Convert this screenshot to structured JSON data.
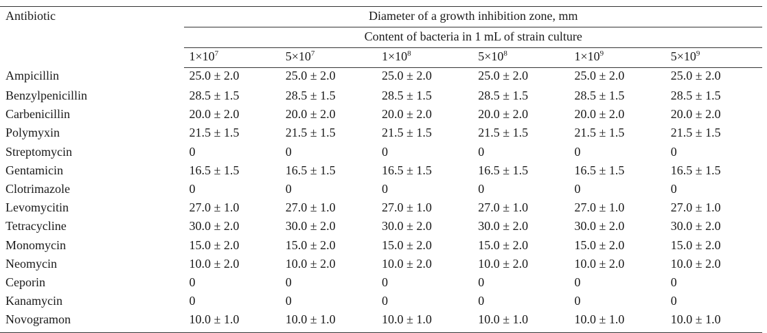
{
  "table": {
    "corner_header": "Antibiotic",
    "group_header": "Diameter of a growth inhibition zone, mm",
    "subgroup_header": "Content of bacteria in 1 mL of strain culture",
    "concentrations": [
      {
        "base": "1×10",
        "exp": "7"
      },
      {
        "base": "5×10",
        "exp": "7"
      },
      {
        "base": "1×10",
        "exp": "8"
      },
      {
        "base": "5×10",
        "exp": "8"
      },
      {
        "base": "1×10",
        "exp": "9"
      },
      {
        "base": "5×10",
        "exp": "9"
      }
    ],
    "rows": [
      {
        "name": "Ampicillin",
        "values": [
          "25.0 ± 2.0",
          "25.0 ± 2.0",
          "25.0 ± 2.0",
          "25.0 ± 2.0",
          "25.0 ± 2.0",
          "25.0 ± 2.0"
        ]
      },
      {
        "name": "Benzylpenicillin",
        "values": [
          "28.5 ± 1.5",
          "28.5 ± 1.5",
          "28.5 ± 1.5",
          "28.5 ± 1.5",
          "28.5 ± 1.5",
          "28.5 ± 1.5"
        ]
      },
      {
        "name": "Carbenicillin",
        "values": [
          "20.0 ± 2.0",
          "20.0 ± 2.0",
          "20.0 ± 2.0",
          "20.0 ± 2.0",
          "20.0 ± 2.0",
          "20.0 ± 2.0"
        ]
      },
      {
        "name": "Polymyxin",
        "values": [
          "21.5 ± 1.5",
          "21.5 ± 1.5",
          "21.5 ± 1.5",
          "21.5 ± 1.5",
          "21.5 ± 1.5",
          "21.5 ± 1.5"
        ]
      },
      {
        "name": "Streptomycin",
        "values": [
          "0",
          "0",
          "0",
          "0",
          "0",
          "0"
        ]
      },
      {
        "name": "Gentamicin",
        "values": [
          "16.5 ± 1.5",
          "16.5 ± 1.5",
          "16.5 ± 1.5",
          "16.5 ± 1.5",
          "16.5 ± 1.5",
          "16.5 ± 1.5"
        ]
      },
      {
        "name": "Clotrimazole",
        "values": [
          "0",
          "0",
          "0",
          "0",
          "0",
          "0"
        ]
      },
      {
        "name": "Levomycitin",
        "values": [
          "27.0 ± 1.0",
          "27.0 ± 1.0",
          "27.0 ± 1.0",
          "27.0 ± 1.0",
          "27.0 ± 1.0",
          "27.0 ± 1.0"
        ]
      },
      {
        "name": "Tetracycline",
        "values": [
          "30.0 ± 2.0",
          "30.0 ± 2.0",
          "30.0 ± 2.0",
          "30.0 ± 2.0",
          "30.0 ± 2.0",
          "30.0 ± 2.0"
        ]
      },
      {
        "name": "Monomycin",
        "values": [
          "15.0 ± 2.0",
          "15.0 ± 2.0",
          "15.0 ± 2.0",
          "15.0 ± 2.0",
          "15.0 ± 2.0",
          "15.0 ± 2.0"
        ]
      },
      {
        "name": "Neomycin",
        "values": [
          "10.0 ± 2.0",
          "10.0 ± 2.0",
          "10.0 ± 2.0",
          "10.0 ± 2.0",
          "10.0 ± 2.0",
          "10.0 ± 2.0"
        ]
      },
      {
        "name": "Ceporin",
        "values": [
          "0",
          "0",
          "0",
          "0",
          "0",
          "0"
        ]
      },
      {
        "name": "Kanamycin",
        "values": [
          "0",
          "0",
          "0",
          "0",
          "0",
          "0"
        ]
      },
      {
        "name": "Novogramon",
        "values": [
          "10.0 ± 1.0",
          "10.0 ± 1.0",
          "10.0 ± 1.0",
          "10.0 ± 1.0",
          "10.0 ± 1.0",
          "10.0 ± 1.0"
        ]
      }
    ]
  }
}
